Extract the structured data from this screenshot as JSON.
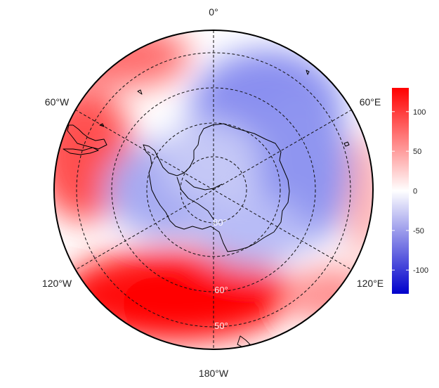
{
  "map": {
    "projection": "south polar stereographic",
    "longitude_labels": {
      "top": "0°",
      "upper_right": "60°E",
      "lower_right": "120°E",
      "bottom": "180°W",
      "lower_left": "120°W",
      "upper_left": "60°W"
    },
    "latitude_labels": [
      "80°",
      "60°",
      "50°"
    ],
    "field": {
      "description_pattern": "positive anomaly over Pacific sector and Drake Passage, negative over Antarctica and Indian sector",
      "max_region": "Pacific 120°W–180°",
      "min_region": "East Antarctica / Indian Ocean sector"
    }
  },
  "colorbar": {
    "min": -130,
    "max": 130,
    "ticks": [
      "100",
      "50",
      "0",
      "-50",
      "-100"
    ],
    "tick_values": [
      100,
      50,
      0,
      -50,
      -100
    ],
    "colors": {
      "low": "#0000cc",
      "mid": "#ffffff",
      "high": "#ff0000"
    }
  }
}
